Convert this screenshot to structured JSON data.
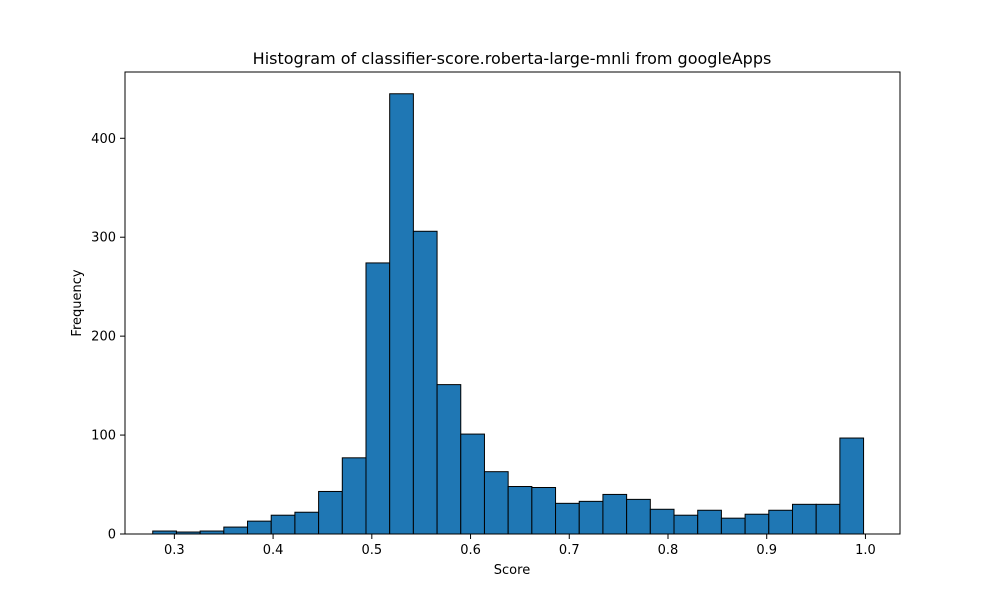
{
  "chart_data": {
    "type": "bar",
    "title": "Histogram of classifier-score.roberta-large-mnli from googleApps",
    "xlabel": "Score",
    "ylabel": "Frequency",
    "xlim": [
      0.25,
      1.035
    ],
    "ylim": [
      0,
      467
    ],
    "xticks": [
      0.3,
      0.4,
      0.5,
      0.6,
      0.7,
      0.8,
      0.9,
      1.0
    ],
    "xtick_labels": [
      "0.3",
      "0.4",
      "0.5",
      "0.6",
      "0.7",
      "0.8",
      "0.9",
      "1.0"
    ],
    "yticks": [
      0,
      100,
      200,
      300,
      400
    ],
    "ytick_labels": [
      "0",
      "100",
      "200",
      "300",
      "400"
    ],
    "bin_edges": [
      0.2781,
      0.3021,
      0.3261,
      0.3501,
      0.3741,
      0.3981,
      0.4221,
      0.4461,
      0.4701,
      0.4941,
      0.5181,
      0.5421,
      0.5661,
      0.5901,
      0.6141,
      0.6381,
      0.6621,
      0.6861,
      0.7101,
      0.7341,
      0.7581,
      0.7821,
      0.8061,
      0.8301,
      0.8541,
      0.8781,
      0.9021,
      0.9261,
      0.9501,
      0.9741,
      0.9981
    ],
    "values": [
      3,
      2,
      3,
      7,
      13,
      19,
      22,
      43,
      77,
      274,
      445,
      306,
      151,
      101,
      63,
      48,
      47,
      31,
      33,
      40,
      35,
      25,
      19,
      24,
      16,
      20,
      24,
      30,
      30,
      97
    ],
    "bar_color": "#1f77b4",
    "edge_color": "#000000",
    "grid": false,
    "legend": false
  }
}
